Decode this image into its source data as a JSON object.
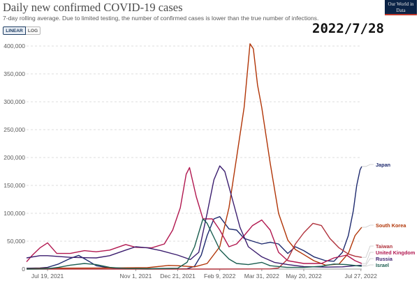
{
  "title": "Daily new confirmed COVID-19 cases",
  "subtitle": "7-day rolling average. Due to limited testing, the number of confirmed cases is lower than the true number of infections.",
  "logo_text": "Our World in Data",
  "toggle": {
    "linear": "LINEAR",
    "log": "LOG",
    "selected": "LINEAR"
  },
  "date_stamp": "2022/7/28",
  "chart_data": {
    "type": "line",
    "title": "Daily new confirmed COVID-19 cases",
    "xlabel": "",
    "ylabel": "",
    "ylim": [
      0,
      400000
    ],
    "xlim": [
      "2021-06-24",
      "2022-07-28"
    ],
    "yticks": [
      0,
      50000,
      100000,
      150000,
      200000,
      250000,
      300000,
      350000,
      400000
    ],
    "ytick_labels": [
      "0",
      "50,000",
      "100,000",
      "150,000",
      "200,000",
      "250,000",
      "300,000",
      "350,000",
      "400,000"
    ],
    "xticks": [
      "2021-07-19",
      "2021-11-01",
      "2021-12-21",
      "2022-02-09",
      "2022-03-31",
      "2022-05-20",
      "2022-07-27"
    ],
    "xtick_labels": [
      "Jul 19, 2021",
      "Nov 1, 2021",
      "Dec 21, 2021",
      "Feb 9, 2022",
      "Mar 31, 2022",
      "May 20, 2022",
      "Jul 27, 2022"
    ],
    "grid": true,
    "legend": "labels at line ends (right)",
    "series": [
      {
        "name": "Japan",
        "color": "#1e2a6e",
        "points": [
          [
            "2021-06-24",
            1500
          ],
          [
            "2021-07-10",
            2000
          ],
          [
            "2021-07-19",
            3000
          ],
          [
            "2021-08-01",
            9000
          ],
          [
            "2021-08-15",
            19000
          ],
          [
            "2021-08-25",
            24500
          ],
          [
            "2021-09-05",
            15000
          ],
          [
            "2021-09-15",
            6000
          ],
          [
            "2021-10-01",
            2000
          ],
          [
            "2021-10-15",
            500
          ],
          [
            "2021-11-15",
            150
          ],
          [
            "2021-12-21",
            200
          ],
          [
            "2022-01-01",
            500
          ],
          [
            "2022-01-10",
            5000
          ],
          [
            "2022-01-18",
            25000
          ],
          [
            "2022-01-25",
            60000
          ],
          [
            "2022-02-02",
            90000
          ],
          [
            "2022-02-09",
            94000
          ],
          [
            "2022-02-20",
            72000
          ],
          [
            "2022-03-01",
            70000
          ],
          [
            "2022-03-10",
            55000
          ],
          [
            "2022-03-20",
            50000
          ],
          [
            "2022-03-31",
            45000
          ],
          [
            "2022-04-10",
            48000
          ],
          [
            "2022-04-20",
            45000
          ],
          [
            "2022-05-01",
            28000
          ],
          [
            "2022-05-10",
            40000
          ],
          [
            "2022-05-20",
            33000
          ],
          [
            "2022-06-01",
            22000
          ],
          [
            "2022-06-15",
            15000
          ],
          [
            "2022-06-25",
            14000
          ],
          [
            "2022-07-05",
            30000
          ],
          [
            "2022-07-12",
            60000
          ],
          [
            "2022-07-18",
            105000
          ],
          [
            "2022-07-22",
            150000
          ],
          [
            "2022-07-26",
            178000
          ],
          [
            "2022-07-28",
            184000
          ]
        ]
      },
      {
        "name": "South Korea",
        "color": "#b13507",
        "points": [
          [
            "2021-06-24",
            500
          ],
          [
            "2021-08-01",
            1600
          ],
          [
            "2021-10-01",
            2000
          ],
          [
            "2021-11-15",
            2500
          ],
          [
            "2021-12-10",
            6500
          ],
          [
            "2021-12-21",
            6000
          ],
          [
            "2022-01-10",
            4000
          ],
          [
            "2022-01-25",
            10000
          ],
          [
            "2022-02-09",
            40000
          ],
          [
            "2022-02-20",
            110000
          ],
          [
            "2022-03-01",
            200000
          ],
          [
            "2022-03-10",
            290000
          ],
          [
            "2022-03-17",
            404000
          ],
          [
            "2022-03-21",
            395000
          ],
          [
            "2022-03-26",
            330000
          ],
          [
            "2022-03-31",
            290000
          ],
          [
            "2022-04-10",
            190000
          ],
          [
            "2022-04-20",
            100000
          ],
          [
            "2022-05-01",
            52000
          ],
          [
            "2022-05-10",
            35000
          ],
          [
            "2022-05-20",
            26000
          ],
          [
            "2022-06-01",
            15000
          ],
          [
            "2022-06-15",
            7000
          ],
          [
            "2022-07-01",
            9000
          ],
          [
            "2022-07-12",
            28000
          ],
          [
            "2022-07-20",
            60000
          ],
          [
            "2022-07-28",
            75000
          ]
        ]
      },
      {
        "name": "Taiwan",
        "color": "#b0323c",
        "points": [
          [
            "2021-06-24",
            10
          ],
          [
            "2021-10-01",
            5
          ],
          [
            "2022-02-09",
            50
          ],
          [
            "2022-04-10",
            200
          ],
          [
            "2022-04-20",
            2000
          ],
          [
            "2022-05-01",
            18000
          ],
          [
            "2022-05-10",
            45000
          ],
          [
            "2022-05-20",
            65000
          ],
          [
            "2022-05-31",
            82000
          ],
          [
            "2022-06-10",
            78000
          ],
          [
            "2022-06-20",
            55000
          ],
          [
            "2022-07-01",
            38000
          ],
          [
            "2022-07-12",
            27000
          ],
          [
            "2022-07-20",
            23000
          ],
          [
            "2022-07-28",
            21000
          ]
        ]
      },
      {
        "name": "United Kingdom",
        "color": "#b1174f",
        "points": [
          [
            "2021-06-24",
            13000
          ],
          [
            "2021-07-01",
            25000
          ],
          [
            "2021-07-10",
            38000
          ],
          [
            "2021-07-19",
            47000
          ],
          [
            "2021-07-30",
            28000
          ],
          [
            "2021-08-15",
            28000
          ],
          [
            "2021-09-01",
            33000
          ],
          [
            "2021-09-15",
            31000
          ],
          [
            "2021-10-01",
            34000
          ],
          [
            "2021-10-20",
            44000
          ],
          [
            "2021-11-01",
            39000
          ],
          [
            "2021-11-20",
            38000
          ],
          [
            "2021-12-05",
            45000
          ],
          [
            "2021-12-15",
            70000
          ],
          [
            "2021-12-24",
            110000
          ],
          [
            "2021-12-31",
            170000
          ],
          [
            "2022-01-04",
            182000
          ],
          [
            "2022-01-12",
            130000
          ],
          [
            "2022-01-20",
            90000
          ],
          [
            "2022-01-31",
            90000
          ],
          [
            "2022-02-09",
            70000
          ],
          [
            "2022-02-20",
            40000
          ],
          [
            "2022-03-01",
            45000
          ],
          [
            "2022-03-10",
            60000
          ],
          [
            "2022-03-20",
            78000
          ],
          [
            "2022-03-31",
            88000
          ],
          [
            "2022-04-10",
            70000
          ],
          [
            "2022-04-20",
            30000
          ],
          [
            "2022-05-01",
            15000
          ],
          [
            "2022-05-20",
            10000
          ],
          [
            "2022-06-10",
            10000
          ],
          [
            "2022-06-25",
            20000
          ],
          [
            "2022-07-10",
            25000
          ],
          [
            "2022-07-20",
            15000
          ],
          [
            "2022-07-28",
            10000
          ]
        ]
      },
      {
        "name": "Russia",
        "color": "#3b1d6e",
        "points": [
          [
            "2021-06-24",
            20000
          ],
          [
            "2021-07-10",
            24000
          ],
          [
            "2021-07-19",
            24000
          ],
          [
            "2021-08-15",
            21000
          ],
          [
            "2021-09-15",
            20000
          ],
          [
            "2021-10-01",
            24000
          ],
          [
            "2021-10-20",
            34000
          ],
          [
            "2021-11-01",
            40000
          ],
          [
            "2021-11-15",
            38000
          ],
          [
            "2021-12-01",
            33000
          ],
          [
            "2021-12-21",
            25000
          ],
          [
            "2022-01-05",
            17000
          ],
          [
            "2022-01-15",
            30000
          ],
          [
            "2022-01-25",
            100000
          ],
          [
            "2022-02-02",
            160000
          ],
          [
            "2022-02-09",
            185000
          ],
          [
            "2022-02-15",
            175000
          ],
          [
            "2022-02-25",
            120000
          ],
          [
            "2022-03-05",
            75000
          ],
          [
            "2022-03-15",
            40000
          ],
          [
            "2022-03-31",
            22000
          ],
          [
            "2022-04-15",
            12000
          ],
          [
            "2022-05-01",
            8000
          ],
          [
            "2022-05-20",
            4500
          ],
          [
            "2022-06-15",
            3500
          ],
          [
            "2022-07-05",
            4000
          ],
          [
            "2022-07-28",
            7000
          ]
        ]
      },
      {
        "name": "Israel",
        "color": "#1b5e50",
        "points": [
          [
            "2021-06-24",
            20
          ],
          [
            "2021-07-10",
            300
          ],
          [
            "2021-07-19",
            800
          ],
          [
            "2021-08-01",
            3000
          ],
          [
            "2021-08-15",
            7000
          ],
          [
            "2021-09-01",
            10000
          ],
          [
            "2021-09-15",
            8000
          ],
          [
            "2021-10-01",
            3000
          ],
          [
            "2021-10-20",
            1000
          ],
          [
            "2021-11-15",
            600
          ],
          [
            "2021-12-21",
            1500
          ],
          [
            "2022-01-01",
            12000
          ],
          [
            "2022-01-10",
            40000
          ],
          [
            "2022-01-20",
            90000
          ],
          [
            "2022-01-25",
            82000
          ],
          [
            "2022-02-01",
            60000
          ],
          [
            "2022-02-09",
            35000
          ],
          [
            "2022-02-20",
            18000
          ],
          [
            "2022-03-01",
            10000
          ],
          [
            "2022-03-15",
            8000
          ],
          [
            "2022-03-31",
            12000
          ],
          [
            "2022-04-10",
            6000
          ],
          [
            "2022-04-30",
            3000
          ],
          [
            "2022-05-20",
            3000
          ],
          [
            "2022-06-10",
            5000
          ],
          [
            "2022-06-25",
            9000
          ],
          [
            "2022-07-10",
            8000
          ],
          [
            "2022-07-28",
            5000
          ]
        ]
      }
    ]
  }
}
